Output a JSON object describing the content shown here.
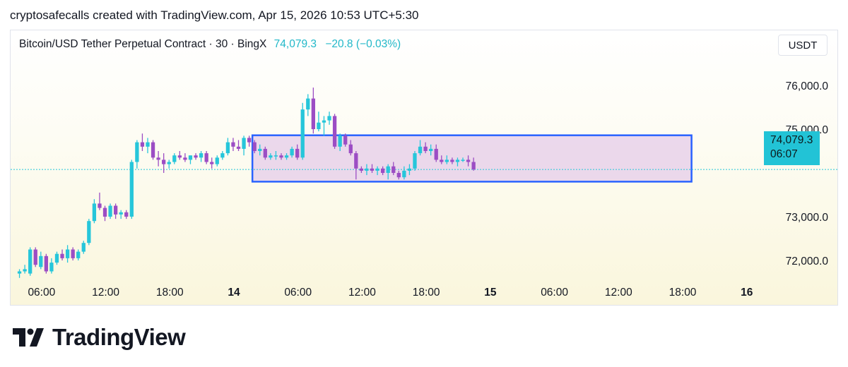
{
  "caption": "cryptosafecalls created with TradingView.com, Apr 15, 2026 10:53 UTC+5:30",
  "header": {
    "symbol": "Bitcoin/USD Tether Perpetual Contract · 30 · BingX",
    "last_price": "74,079.3",
    "change": "−20.8 (−0.03%)"
  },
  "currency_button": "USDT",
  "price_tag": {
    "price": "74,079.3",
    "countdown": "06:07"
  },
  "logo_text": "TradingView",
  "colors": {
    "up": "#26c6da",
    "down": "#9c4dc4",
    "zone_fill": "#e7d1ea",
    "zone_border": "#2962ff",
    "last_price_line": "#26c6da"
  },
  "chart_data": {
    "type": "candlestick",
    "interval": "30",
    "y_ticks": [
      {
        "value": 72000,
        "label": "72,000.0"
      },
      {
        "value": 73000,
        "label": "73,000.0"
      },
      {
        "value": 75000,
        "label": "75,000.0"
      },
      {
        "value": 76000,
        "label": "76,000.0"
      }
    ],
    "ylim": [
      71600,
      76800
    ],
    "x_ticks": [
      {
        "t": -18,
        "label": "06:00",
        "bold": false
      },
      {
        "t": -12,
        "label": "12:00",
        "bold": false
      },
      {
        "t": -6,
        "label": "18:00",
        "bold": false
      },
      {
        "t": 0,
        "label": "14",
        "bold": true
      },
      {
        "t": 6,
        "label": "06:00",
        "bold": false
      },
      {
        "t": 12,
        "label": "12:00",
        "bold": false
      },
      {
        "t": 18,
        "label": "18:00",
        "bold": false
      },
      {
        "t": 24,
        "label": "15",
        "bold": true
      },
      {
        "t": 30,
        "label": "06:00",
        "bold": false
      },
      {
        "t": 36,
        "label": "12:00",
        "bold": false
      },
      {
        "t": 42,
        "label": "18:00",
        "bold": false
      },
      {
        "t": 48,
        "label": "16",
        "bold": true
      }
    ],
    "t_start": -20.4,
    "t_step": 0.5,
    "candles": [
      [
        71700,
        71800,
        71600,
        71750
      ],
      [
        71750,
        71900,
        71700,
        71800
      ],
      [
        71700,
        72300,
        71650,
        72250
      ],
      [
        72250,
        72300,
        71850,
        71900
      ],
      [
        71850,
        72200,
        71800,
        72100
      ],
      [
        72100,
        72150,
        71700,
        71750
      ],
      [
        71750,
        72050,
        71700,
        71950
      ],
      [
        71950,
        72200,
        71900,
        72150
      ],
      [
        72150,
        72250,
        72000,
        72050
      ],
      [
        72050,
        72350,
        71950,
        72250
      ],
      [
        72250,
        72300,
        72000,
        72050
      ],
      [
        72050,
        72250,
        72000,
        72200
      ],
      [
        72200,
        72450,
        72150,
        72400
      ],
      [
        72400,
        72950,
        72350,
        72900
      ],
      [
        72900,
        73400,
        72850,
        73300
      ],
      [
        73300,
        73550,
        73150,
        73200
      ],
      [
        73200,
        73250,
        72900,
        73000
      ],
      [
        73000,
        73300,
        72950,
        73250
      ],
      [
        73250,
        73300,
        72950,
        73050
      ],
      [
        73050,
        73150,
        72950,
        73100
      ],
      [
        73100,
        73150,
        72950,
        73000
      ],
      [
        73000,
        74300,
        72950,
        74250
      ],
      [
        74250,
        74750,
        74100,
        74700
      ],
      [
        74700,
        74900,
        74500,
        74600
      ],
      [
        74600,
        74800,
        74450,
        74700
      ],
      [
        74700,
        74750,
        74300,
        74350
      ],
      [
        74350,
        74500,
        74150,
        74300
      ],
      [
        74300,
        74450,
        74000,
        74200
      ],
      [
        74200,
        74300,
        74100,
        74250
      ],
      [
        74250,
        74450,
        74200,
        74400
      ],
      [
        74400,
        74500,
        74300,
        74350
      ],
      [
        74350,
        74450,
        74250,
        74300
      ],
      [
        74300,
        74400,
        74200,
        74400
      ],
      [
        74400,
        74450,
        74300,
        74350
      ],
      [
        74350,
        74500,
        74250,
        74450
      ],
      [
        74450,
        74500,
        74200,
        74250
      ],
      [
        74250,
        74350,
        74100,
        74200
      ],
      [
        74200,
        74400,
        74150,
        74350
      ],
      [
        74350,
        74500,
        74300,
        74450
      ],
      [
        74450,
        74800,
        74400,
        74700
      ],
      [
        74700,
        74800,
        74500,
        74600
      ],
      [
        74600,
        74750,
        74500,
        74550
      ],
      [
        74550,
        74850,
        74400,
        74800
      ],
      [
        74800,
        74850,
        74600,
        74700
      ],
      [
        74700,
        74750,
        74450,
        74500
      ],
      [
        74500,
        74650,
        74400,
        74550
      ],
      [
        74550,
        74600,
        74300,
        74350
      ],
      [
        74350,
        74450,
        74300,
        74400
      ],
      [
        74400,
        74500,
        74300,
        74400
      ],
      [
        74400,
        74450,
        74300,
        74350
      ],
      [
        74350,
        74450,
        74300,
        74400
      ],
      [
        74400,
        74600,
        74350,
        74550
      ],
      [
        74550,
        74650,
        74300,
        74350
      ],
      [
        74350,
        75600,
        74300,
        75450
      ],
      [
        75450,
        75800,
        75300,
        75700
      ],
      [
        75700,
        75950,
        74900,
        75000
      ],
      [
        75000,
        75400,
        74950,
        75150
      ],
      [
        75150,
        75300,
        74850,
        75200
      ],
      [
        75200,
        75400,
        75100,
        75300
      ],
      [
        75300,
        75350,
        74550,
        74600
      ],
      [
        74600,
        74900,
        74500,
        74850
      ],
      [
        74850,
        74900,
        74600,
        74650
      ],
      [
        74650,
        74750,
        74400,
        74450
      ],
      [
        74450,
        74500,
        73850,
        74100
      ],
      [
        74100,
        74150,
        74000,
        74050
      ],
      [
        74050,
        74200,
        73950,
        74100
      ],
      [
        74100,
        74200,
        74000,
        74050
      ],
      [
        74050,
        74150,
        73950,
        74100
      ],
      [
        74100,
        74150,
        73950,
        74000
      ],
      [
        74000,
        74200,
        73850,
        74150
      ],
      [
        74150,
        74250,
        73950,
        74000
      ],
      [
        74000,
        74050,
        73850,
        73900
      ],
      [
        73900,
        74150,
        73850,
        74050
      ],
      [
        74050,
        74200,
        73950,
        74100
      ],
      [
        74100,
        74500,
        74050,
        74450
      ],
      [
        74450,
        74750,
        74400,
        74600
      ],
      [
        74600,
        74700,
        74450,
        74500
      ],
      [
        74500,
        74650,
        74400,
        74550
      ],
      [
        74550,
        74650,
        74250,
        74300
      ],
      [
        74300,
        74400,
        74200,
        74250
      ],
      [
        74250,
        74400,
        74200,
        74300
      ],
      [
        74300,
        74350,
        74200,
        74250
      ],
      [
        74250,
        74350,
        74150,
        74300
      ],
      [
        74300,
        74350,
        74250,
        74300
      ],
      [
        74300,
        74400,
        74150,
        74250
      ],
      [
        74250,
        74350,
        74050,
        74079
      ]
    ],
    "zone": {
      "t_from": 1.4,
      "t_to": 42.5,
      "price_top": 74860,
      "price_bottom": 73800
    },
    "last_price": 74079.3
  }
}
